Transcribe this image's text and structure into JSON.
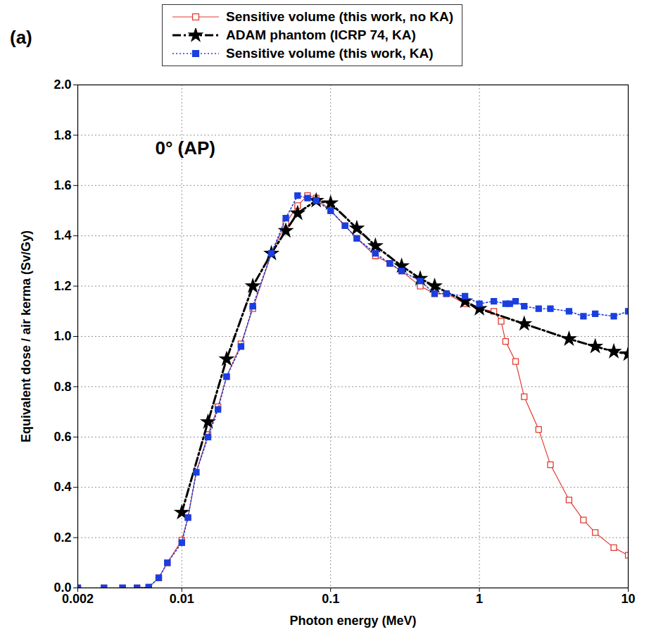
{
  "chart_data": {
    "type": "line",
    "panel_label": "(a)",
    "annotations": [
      "0° (AP)"
    ],
    "xlabel": "Photon energy (MeV)",
    "ylabel": "Equivalent dose / air kerma (Sv/Gy)",
    "log": "x",
    "grid": true,
    "legend": "top",
    "xlim": [
      0.002,
      10
    ],
    "xticks": [
      0.002,
      0.01,
      0.1,
      1,
      10
    ],
    "ylim": [
      0,
      2
    ],
    "yticks": [
      {
        "value": 0,
        "label": "0.0"
      },
      0.2,
      0.4,
      0.6,
      0.8,
      {
        "value": 1,
        "label": "1.0"
      },
      1.2,
      1.4,
      1.6,
      1.8,
      {
        "value": 2,
        "label": "2.0"
      }
    ],
    "series": [
      {
        "name": "Sensitive volume (this work, no KA)",
        "color": "#e03c31",
        "marker": "square-open",
        "line_style": "solid",
        "x": [
          0.002,
          0.003,
          0.004,
          0.005,
          0.006,
          0.007,
          0.008,
          0.01,
          0.011,
          0.0125,
          0.015,
          0.0175,
          0.02,
          0.025,
          0.03,
          0.04,
          0.05,
          0.06,
          0.07,
          0.08,
          0.1,
          0.125,
          0.15,
          0.2,
          0.25,
          0.3,
          0.4,
          0.5,
          0.6,
          0.8,
          1,
          1.25,
          1.4,
          1.5,
          1.75,
          2,
          2.5,
          3,
          4,
          5,
          6,
          8,
          10
        ],
        "values": [
          0,
          0,
          0,
          0,
          0.003,
          0.04,
          0.1,
          0.19,
          0.28,
          0.46,
          0.61,
          0.72,
          0.84,
          0.97,
          1.11,
          1.33,
          1.45,
          1.52,
          1.56,
          1.55,
          1.5,
          1.44,
          1.39,
          1.32,
          1.29,
          1.26,
          1.2,
          1.17,
          1.17,
          1.13,
          1.11,
          1.1,
          1.06,
          0.98,
          0.9,
          0.76,
          0.63,
          0.49,
          0.35,
          0.27,
          0.22,
          0.16,
          0.13
        ]
      },
      {
        "name": "ADAM phantom (ICRP 74, KA)",
        "color": "#000000",
        "marker": "star",
        "line_style": "dashdot",
        "x": [
          0.01,
          0.015,
          0.02,
          0.03,
          0.04,
          0.05,
          0.06,
          0.08,
          0.1,
          0.15,
          0.2,
          0.3,
          0.4,
          0.5,
          0.8,
          1,
          2,
          4,
          6,
          8,
          10
        ],
        "values": [
          0.3,
          0.66,
          0.91,
          1.2,
          1.33,
          1.42,
          1.49,
          1.54,
          1.53,
          1.43,
          1.36,
          1.28,
          1.23,
          1.2,
          1.14,
          1.11,
          1.05,
          0.99,
          0.96,
          0.94,
          0.93
        ]
      },
      {
        "name": "Sensitive volume (this work, KA)",
        "color": "#1a3fe0",
        "marker": "square",
        "line_style": "dotted",
        "x": [
          0.002,
          0.003,
          0.004,
          0.005,
          0.006,
          0.007,
          0.008,
          0.01,
          0.011,
          0.0125,
          0.015,
          0.0175,
          0.02,
          0.025,
          0.03,
          0.04,
          0.05,
          0.06,
          0.07,
          0.08,
          0.1,
          0.125,
          0.15,
          0.2,
          0.25,
          0.3,
          0.4,
          0.5,
          0.6,
          0.8,
          1,
          1.25,
          1.5,
          1.6,
          1.75,
          2,
          2.5,
          3,
          4,
          5,
          6,
          8,
          10
        ],
        "values": [
          0,
          0,
          0,
          0,
          0.003,
          0.04,
          0.1,
          0.18,
          0.28,
          0.46,
          0.6,
          0.71,
          0.84,
          0.96,
          1.12,
          1.33,
          1.47,
          1.56,
          1.55,
          1.54,
          1.5,
          1.44,
          1.39,
          1.33,
          1.29,
          1.26,
          1.22,
          1.17,
          1.17,
          1.16,
          1.13,
          1.14,
          1.13,
          1.13,
          1.14,
          1.12,
          1.11,
          1.11,
          1.1,
          1.08,
          1.09,
          1.08,
          1.1
        ]
      }
    ]
  }
}
